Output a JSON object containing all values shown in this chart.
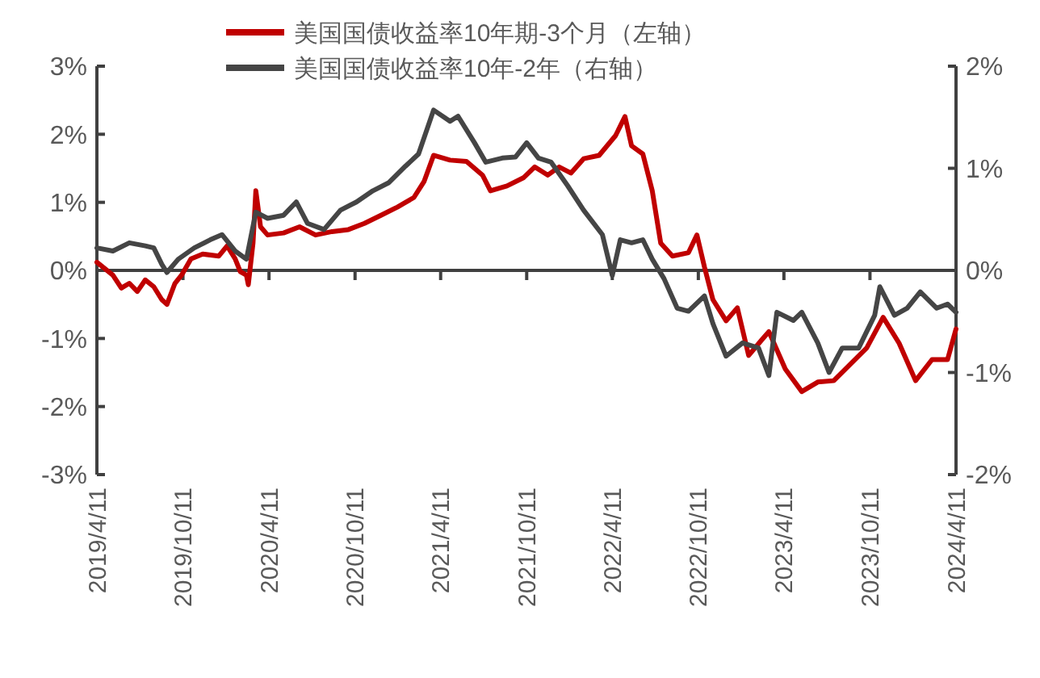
{
  "chart_data": {
    "type": "line",
    "legend": "top",
    "line_style": "solid",
    "xlim": [
      "2019-04-11",
      "2024-04-11"
    ],
    "xticks": [
      {
        "value": "2019-04-11",
        "label": "2019/4/11"
      },
      {
        "value": "2019-10-11",
        "label": "2019/10/11"
      },
      {
        "value": "2020-04-11",
        "label": "2020/4/11"
      },
      {
        "value": "2020-10-11",
        "label": "2020/10/11"
      },
      {
        "value": "2021-04-11",
        "label": "2021/4/11"
      },
      {
        "value": "2021-10-11",
        "label": "2021/10/11"
      },
      {
        "value": "2022-04-11",
        "label": "2022/4/11"
      },
      {
        "value": "2022-10-11",
        "label": "2022/10/11"
      },
      {
        "value": "2023-04-11",
        "label": "2023/4/11"
      },
      {
        "value": "2023-10-11",
        "label": "2023/10/11"
      },
      {
        "value": "2024-04-11",
        "label": "2024/4/11"
      }
    ],
    "ylim": [
      -3,
      3
    ],
    "yticks": [
      {
        "value": -3,
        "label": "-3%"
      },
      {
        "value": -2,
        "label": "-2%"
      },
      {
        "value": -1,
        "label": "-1%"
      },
      {
        "value": 0,
        "label": "0%"
      },
      {
        "value": 1,
        "label": "1%"
      },
      {
        "value": 2,
        "label": "2%"
      },
      {
        "value": 3,
        "label": "3%"
      }
    ],
    "y2lim": [
      -2,
      2
    ],
    "y2ticks": [
      {
        "value": -2,
        "label": "-2%"
      },
      {
        "value": -1,
        "label": "-1%"
      },
      {
        "value": 0,
        "label": "0%"
      },
      {
        "value": 1,
        "label": "1%"
      },
      {
        "value": 2,
        "label": "2%"
      }
    ],
    "series": [
      {
        "name": "美国国债收益率10年期-3个月（左轴）",
        "color": "#c00000",
        "x": [
          "2019-04-11",
          "2019-05-15",
          "2019-06-02",
          "2019-06-19",
          "2019-07-06",
          "2019-07-23",
          "2019-08-10",
          "2019-08-27",
          "2019-09-07",
          "2019-09-24",
          "2019-10-08",
          "2019-10-28",
          "2019-11-22",
          "2019-12-26",
          "2020-01-13",
          "2020-01-30",
          "2020-02-10",
          "2020-02-23",
          "2020-02-27",
          "2020-03-08",
          "2020-03-14",
          "2020-03-24",
          "2020-04-08",
          "2020-05-12",
          "2020-06-15",
          "2020-07-19",
          "2020-08-23",
          "2020-09-27",
          "2020-10-31",
          "2020-12-05",
          "2021-01-09",
          "2021-02-13",
          "2021-03-07",
          "2021-03-27",
          "2021-05-01",
          "2021-06-05",
          "2021-07-09",
          "2021-07-26",
          "2021-08-30",
          "2021-10-04",
          "2021-10-28",
          "2021-11-25",
          "2021-12-19",
          "2022-01-13",
          "2022-02-09",
          "2022-03-14",
          "2022-04-18",
          "2022-05-08",
          "2022-05-22",
          "2022-06-15",
          "2022-07-05",
          "2022-07-23",
          "2022-08-17",
          "2022-09-20",
          "2022-10-08",
          "2022-10-24",
          "2022-11-11",
          "2022-12-09",
          "2023-01-02",
          "2023-01-26",
          "2023-02-23",
          "2023-03-10",
          "2023-04-14",
          "2023-05-19",
          "2023-06-22",
          "2023-07-26",
          "2023-08-30",
          "2023-10-04",
          "2023-11-08",
          "2023-12-12",
          "2024-01-16",
          "2024-02-20",
          "2024-03-24",
          "2024-04-11"
        ],
        "values": [
          0.12,
          -0.07,
          -0.26,
          -0.19,
          -0.31,
          -0.14,
          -0.24,
          -0.43,
          -0.5,
          -0.19,
          -0.07,
          0.17,
          0.24,
          0.21,
          0.36,
          0.17,
          -0.02,
          -0.07,
          -0.21,
          0.4,
          1.17,
          0.64,
          0.52,
          0.55,
          0.64,
          0.52,
          0.57,
          0.6,
          0.69,
          0.81,
          0.93,
          1.07,
          1.31,
          1.69,
          1.62,
          1.6,
          1.4,
          1.17,
          1.24,
          1.36,
          1.52,
          1.4,
          1.52,
          1.43,
          1.64,
          1.69,
          1.98,
          2.26,
          1.83,
          1.71,
          1.17,
          0.4,
          0.21,
          0.26,
          0.52,
          0.05,
          -0.43,
          -0.74,
          -0.55,
          -1.25,
          -1.02,
          -0.9,
          -1.45,
          -1.78,
          -1.64,
          -1.62,
          -1.38,
          -1.14,
          -0.69,
          -1.07,
          -1.62,
          -1.31,
          -1.31,
          -0.86
        ]
      },
      {
        "name": "美国国债收益率10年-2年（右轴）",
        "color": "#454545",
        "axis": "y2",
        "x": [
          "2019-04-11",
          "2019-05-15",
          "2019-06-19",
          "2019-07-23",
          "2019-08-10",
          "2019-08-27",
          "2019-09-07",
          "2019-10-01",
          "2019-11-04",
          "2019-12-08",
          "2020-01-02",
          "2020-01-30",
          "2020-02-23",
          "2020-03-14",
          "2020-04-08",
          "2020-05-12",
          "2020-06-08",
          "2020-07-02",
          "2020-08-06",
          "2020-09-10",
          "2020-10-14",
          "2020-11-18",
          "2020-12-22",
          "2021-01-26",
          "2021-02-23",
          "2021-03-27",
          "2021-05-01",
          "2021-05-18",
          "2021-06-22",
          "2021-07-16",
          "2021-08-20",
          "2021-09-17",
          "2021-10-11",
          "2021-11-05",
          "2021-12-02",
          "2022-01-06",
          "2022-02-09",
          "2022-03-21",
          "2022-04-11",
          "2022-04-28",
          "2022-05-22",
          "2022-06-15",
          "2022-07-05",
          "2022-07-30",
          "2022-08-27",
          "2022-09-20",
          "2022-10-24",
          "2022-11-11",
          "2022-12-09",
          "2023-01-13",
          "2023-02-16",
          "2023-03-10",
          "2023-03-27",
          "2023-05-01",
          "2023-05-19",
          "2023-06-22",
          "2023-07-16",
          "2023-08-13",
          "2023-09-17",
          "2023-10-21",
          "2023-11-01",
          "2023-12-02",
          "2023-12-29",
          "2024-01-26",
          "2024-03-01",
          "2024-03-24",
          "2024-04-11"
        ],
        "values": [
          0.22,
          0.19,
          0.27,
          0.24,
          0.22,
          0.06,
          -0.02,
          0.11,
          0.22,
          0.3,
          0.35,
          0.19,
          0.11,
          0.57,
          0.51,
          0.54,
          0.67,
          0.46,
          0.4,
          0.59,
          0.67,
          0.78,
          0.86,
          1.02,
          1.14,
          1.57,
          1.46,
          1.51,
          1.25,
          1.06,
          1.1,
          1.11,
          1.25,
          1.1,
          1.06,
          0.83,
          0.59,
          0.35,
          -0.05,
          0.3,
          0.27,
          0.3,
          0.11,
          -0.08,
          -0.37,
          -0.4,
          -0.25,
          -0.52,
          -0.84,
          -0.71,
          -0.76,
          -1.03,
          -0.41,
          -0.49,
          -0.41,
          -0.71,
          -1.0,
          -0.76,
          -0.76,
          -0.44,
          -0.16,
          -0.44,
          -0.37,
          -0.21,
          -0.37,
          -0.33,
          -0.41
        ]
      }
    ]
  }
}
